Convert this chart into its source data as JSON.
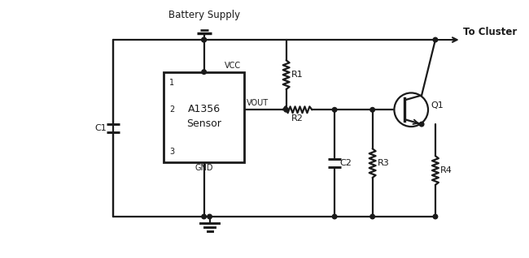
{
  "bg_color": "#ffffff",
  "line_color": "#1a1a1a",
  "battery_label": "Battery Supply",
  "to_cluster_label": "To Cluster",
  "sensor_label1": "A1356",
  "sensor_label2": "Sensor",
  "pin1": "1",
  "pin2": "2",
  "pin3": "3",
  "vcc_label": "VCC",
  "vout_label": "VOUT",
  "gnd_label": "GND",
  "r1_label": "R1",
  "r2_label": "R2",
  "r3_label": "R3",
  "r4_label": "R4",
  "c1_label": "C1",
  "c2_label": "C2",
  "q1_label": "Q1",
  "lw": 1.6,
  "dot_r": 2.8
}
